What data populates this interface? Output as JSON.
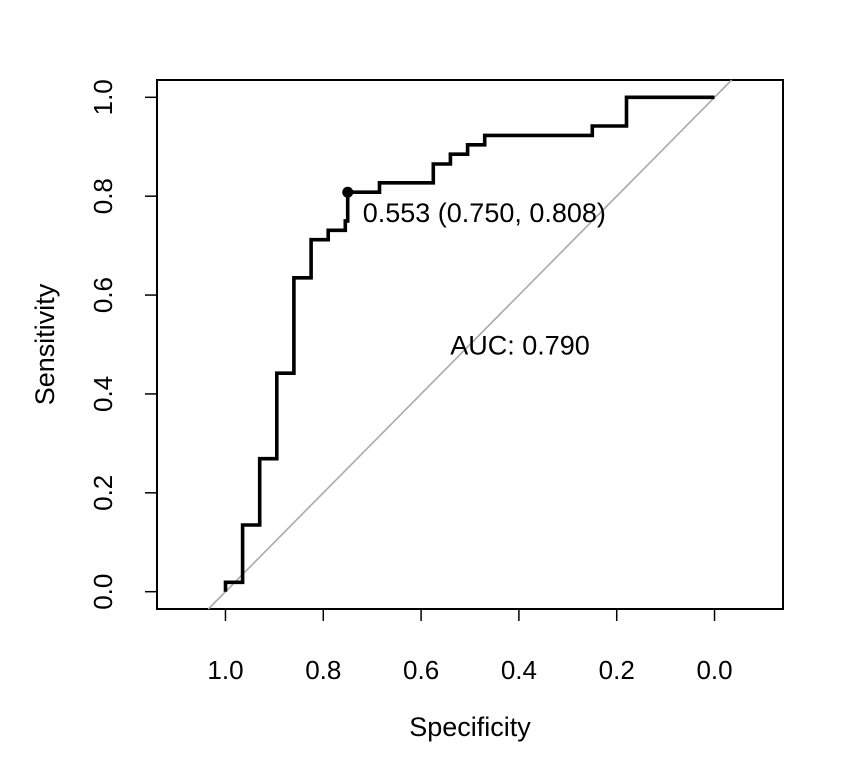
{
  "chart_data": {
    "type": "line",
    "xlabel": "Specificity",
    "ylabel": "Sensitivity",
    "x_axis_reversed": true,
    "xlim": [
      1.14,
      -0.14
    ],
    "ylim": [
      -0.035,
      1.035
    ],
    "x_ticks": [
      "1.0",
      "0.8",
      "0.6",
      "0.4",
      "0.2",
      "0.0"
    ],
    "y_ticks": [
      "0.0",
      "0.2",
      "0.4",
      "0.6",
      "0.8",
      "1.0"
    ],
    "series": [
      {
        "style": "step",
        "color": "#000000",
        "points": [
          [
            1.0,
            0.0
          ],
          [
            1.0,
            0.019
          ],
          [
            0.965,
            0.019
          ],
          [
            0.965,
            0.135
          ],
          [
            0.93,
            0.135
          ],
          [
            0.93,
            0.269
          ],
          [
            0.895,
            0.269
          ],
          [
            0.895,
            0.442
          ],
          [
            0.86,
            0.442
          ],
          [
            0.86,
            0.635
          ],
          [
            0.825,
            0.635
          ],
          [
            0.825,
            0.712
          ],
          [
            0.79,
            0.712
          ],
          [
            0.79,
            0.731
          ],
          [
            0.755,
            0.731
          ],
          [
            0.755,
            0.75
          ],
          [
            0.75,
            0.75
          ],
          [
            0.75,
            0.808
          ],
          [
            0.685,
            0.808
          ],
          [
            0.685,
            0.827
          ],
          [
            0.575,
            0.827
          ],
          [
            0.575,
            0.865
          ],
          [
            0.54,
            0.865
          ],
          [
            0.54,
            0.885
          ],
          [
            0.505,
            0.885
          ],
          [
            0.505,
            0.904
          ],
          [
            0.47,
            0.904
          ],
          [
            0.47,
            0.923
          ],
          [
            0.25,
            0.923
          ],
          [
            0.25,
            0.942
          ],
          [
            0.18,
            0.942
          ],
          [
            0.18,
            1.0
          ],
          [
            0.0,
            1.0
          ]
        ]
      }
    ],
    "reference_line": {
      "from": [
        1.0,
        0.0
      ],
      "to": [
        0.0,
        1.0
      ],
      "color": "#aaaaaa"
    },
    "threshold_point": {
      "x": 0.75,
      "y": 0.808,
      "label": "0.553 (0.750, 0.808)"
    },
    "auc_label": {
      "text": "AUC: 0.790",
      "x": 0.5,
      "y": 0.48
    }
  }
}
